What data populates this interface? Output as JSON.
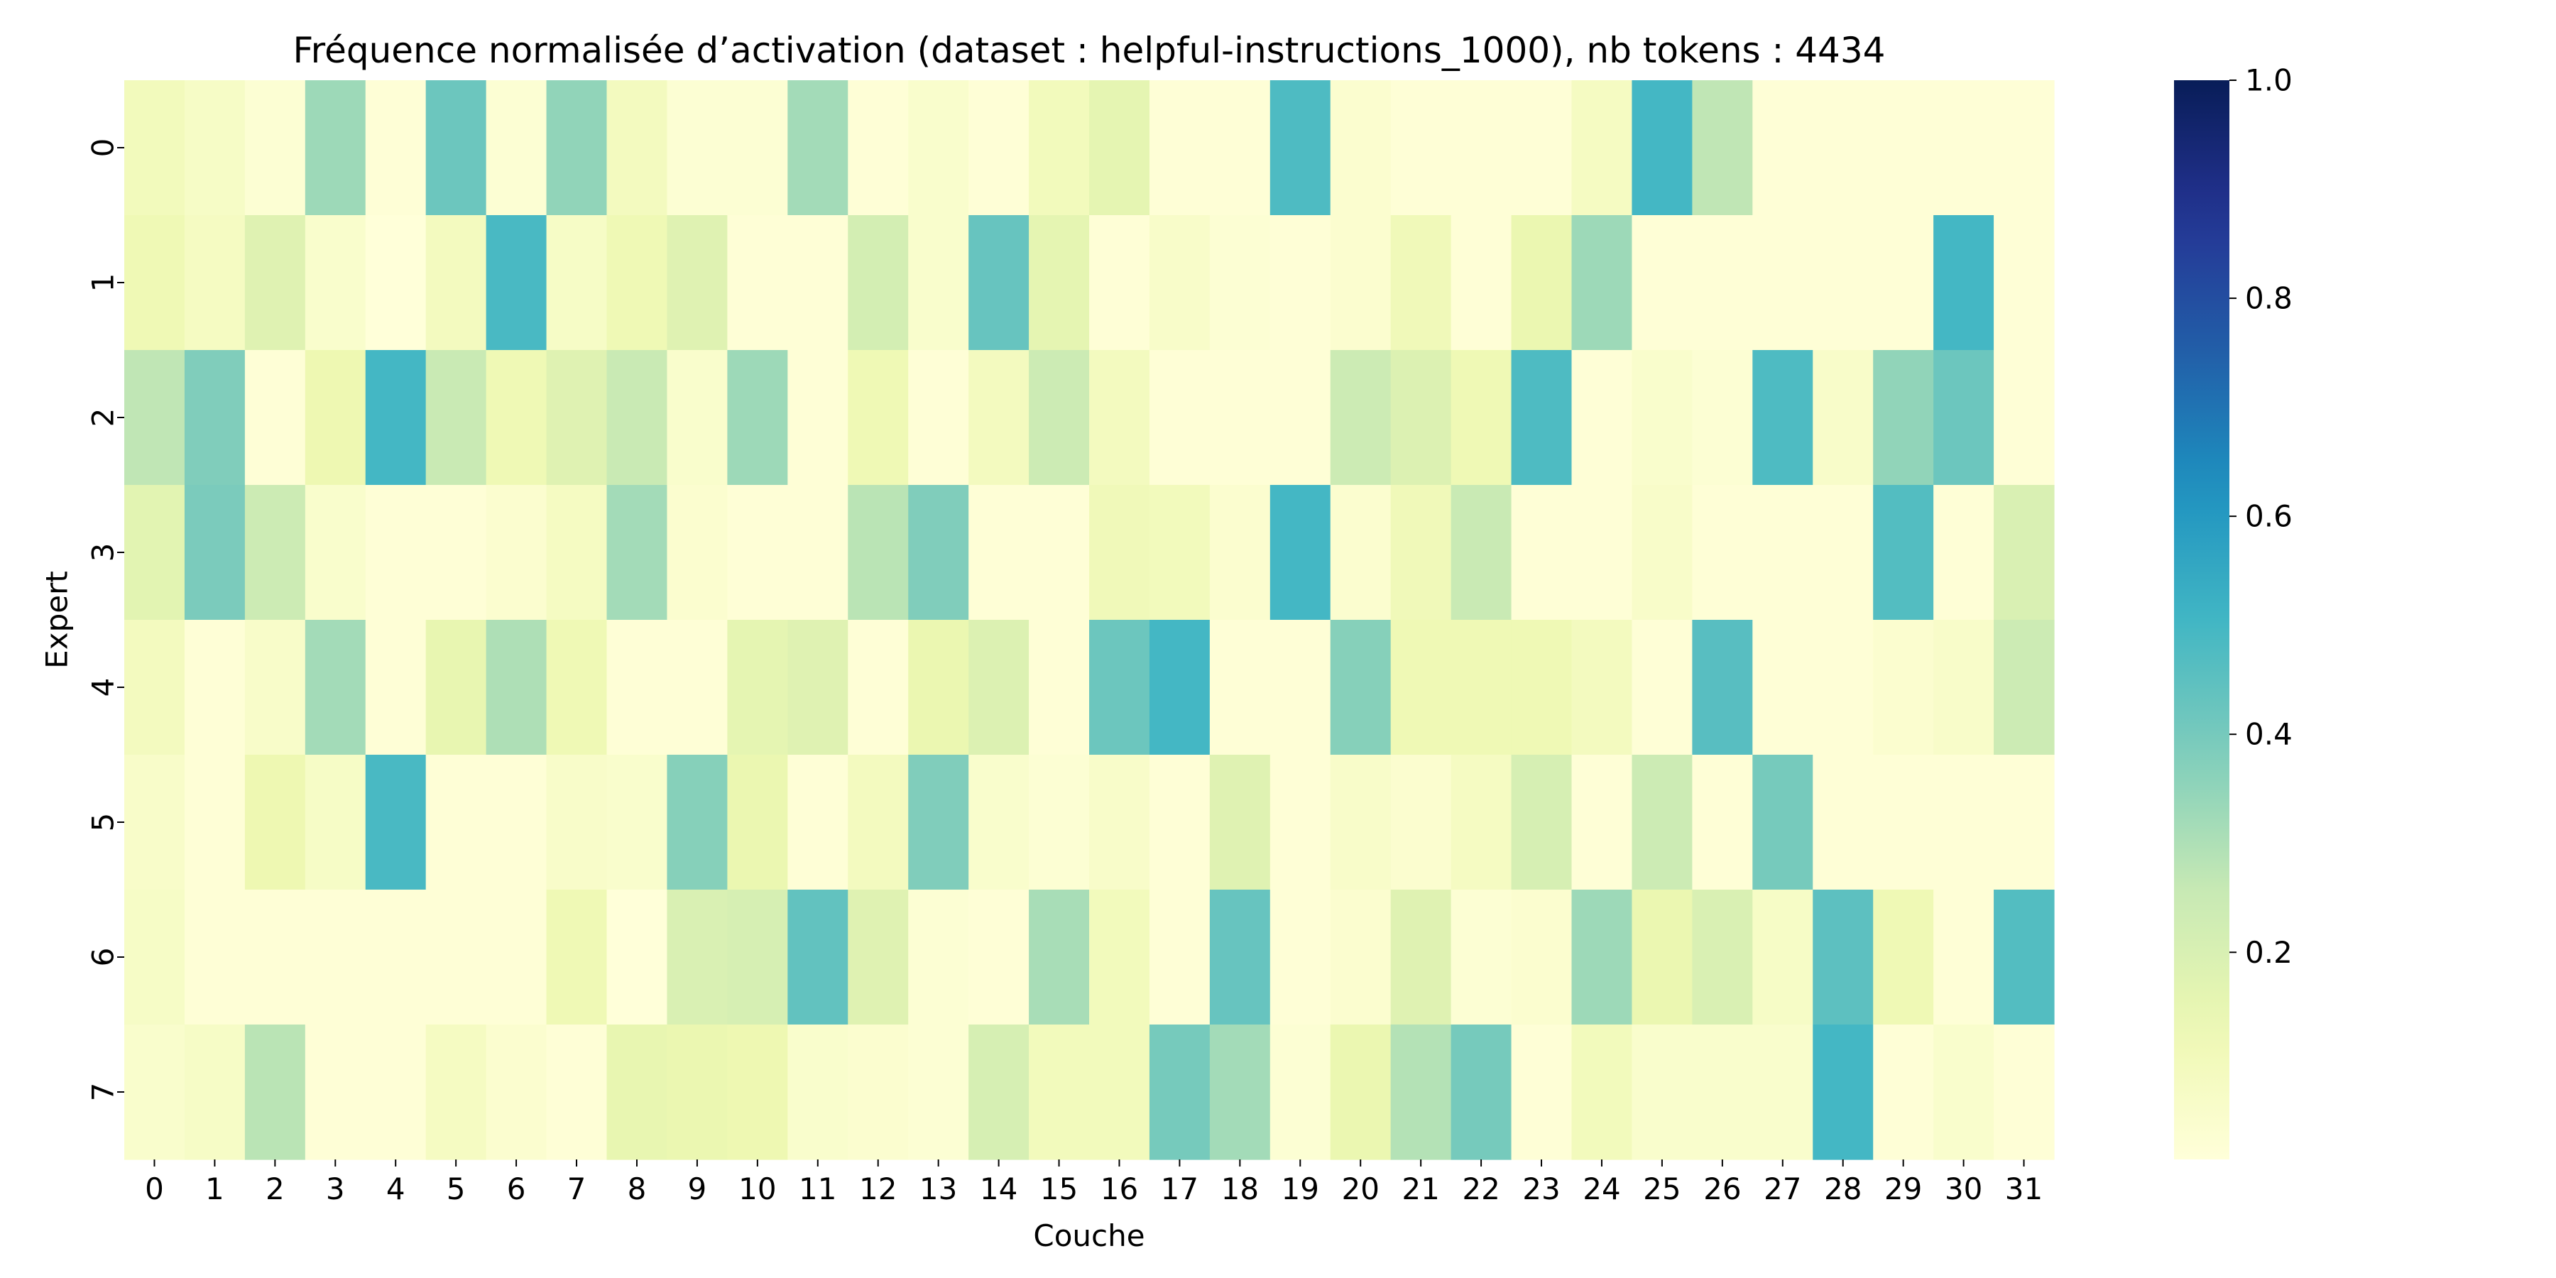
{
  "chart_data": {
    "type": "heatmap",
    "title": "Fréquence normalisée d’activation (dataset : helpful-instructions_1000), nb tokens : 4434",
    "xlabel": "Couche",
    "ylabel": "Expert",
    "x": [
      "0",
      "1",
      "2",
      "3",
      "4",
      "5",
      "6",
      "7",
      "8",
      "9",
      "10",
      "11",
      "12",
      "13",
      "14",
      "15",
      "16",
      "17",
      "18",
      "19",
      "20",
      "21",
      "22",
      "23",
      "24",
      "25",
      "26",
      "27",
      "28",
      "29",
      "30",
      "31"
    ],
    "y": [
      "0",
      "1",
      "2",
      "3",
      "4",
      "5",
      "6",
      "7"
    ],
    "values": [
      [
        0.1,
        0.07,
        0.03,
        0.33,
        0.02,
        0.42,
        0.03,
        0.35,
        0.09,
        0.03,
        0.03,
        0.32,
        0.02,
        0.05,
        0.02,
        0.1,
        0.16,
        0.02,
        0.02,
        0.48,
        0.04,
        0.02,
        0.02,
        0.02,
        0.08,
        0.5,
        0.27,
        0.02,
        0.02,
        0.02,
        0.02,
        0.02
      ],
      [
        0.12,
        0.08,
        0.18,
        0.05,
        0.01,
        0.09,
        0.49,
        0.07,
        0.12,
        0.18,
        0.02,
        0.02,
        0.22,
        0.05,
        0.43,
        0.16,
        0.02,
        0.06,
        0.03,
        0.02,
        0.04,
        0.11,
        0.02,
        0.14,
        0.33,
        0.02,
        0.02,
        0.02,
        0.02,
        0.02,
        0.5,
        0.02
      ],
      [
        0.27,
        0.38,
        0.02,
        0.13,
        0.5,
        0.25,
        0.12,
        0.18,
        0.25,
        0.05,
        0.33,
        0.02,
        0.12,
        0.02,
        0.09,
        0.24,
        0.09,
        0.02,
        0.02,
        0.02,
        0.24,
        0.19,
        0.12,
        0.48,
        0.02,
        0.05,
        0.03,
        0.48,
        0.06,
        0.35,
        0.42,
        0.02
      ],
      [
        0.17,
        0.39,
        0.24,
        0.05,
        0.02,
        0.02,
        0.04,
        0.08,
        0.32,
        0.04,
        0.02,
        0.02,
        0.28,
        0.38,
        0.02,
        0.02,
        0.11,
        0.1,
        0.04,
        0.5,
        0.04,
        0.11,
        0.25,
        0.02,
        0.02,
        0.06,
        0.02,
        0.02,
        0.02,
        0.47,
        0.02,
        0.2
      ],
      [
        0.09,
        0.02,
        0.06,
        0.32,
        0.02,
        0.15,
        0.3,
        0.12,
        0.02,
        0.02,
        0.16,
        0.18,
        0.02,
        0.14,
        0.19,
        0.02,
        0.42,
        0.5,
        0.02,
        0.02,
        0.37,
        0.12,
        0.12,
        0.12,
        0.09,
        0.02,
        0.46,
        0.02,
        0.02,
        0.04,
        0.06,
        0.24
      ],
      [
        0.06,
        0.02,
        0.13,
        0.07,
        0.49,
        0.02,
        0.02,
        0.06,
        0.05,
        0.37,
        0.14,
        0.02,
        0.09,
        0.38,
        0.05,
        0.03,
        0.06,
        0.02,
        0.18,
        0.02,
        0.06,
        0.04,
        0.08,
        0.21,
        0.02,
        0.24,
        0.02,
        0.4,
        0.02,
        0.02,
        0.02,
        0.02
      ],
      [
        0.07,
        0.02,
        0.02,
        0.02,
        0.02,
        0.02,
        0.02,
        0.12,
        0.01,
        0.2,
        0.21,
        0.44,
        0.18,
        0.03,
        0.02,
        0.31,
        0.1,
        0.02,
        0.43,
        0.02,
        0.04,
        0.18,
        0.03,
        0.04,
        0.33,
        0.14,
        0.2,
        0.07,
        0.45,
        0.12,
        0.02,
        0.47
      ],
      [
        0.05,
        0.07,
        0.28,
        0.02,
        0.02,
        0.08,
        0.04,
        0.02,
        0.15,
        0.14,
        0.13,
        0.05,
        0.04,
        0.03,
        0.21,
        0.1,
        0.1,
        0.4,
        0.32,
        0.03,
        0.14,
        0.29,
        0.4,
        0.02,
        0.1,
        0.05,
        0.05,
        0.05,
        0.5,
        0.02,
        0.05,
        0.02
      ]
    ],
    "colorbar": {
      "range": [
        0.01,
        1.0
      ],
      "ticks": [
        "0.2",
        "0.4",
        "0.6",
        "0.8",
        "1.0"
      ],
      "tick_values": [
        0.2,
        0.4,
        0.6,
        0.8,
        1.0
      ],
      "colormap": "YlGnBu"
    }
  }
}
